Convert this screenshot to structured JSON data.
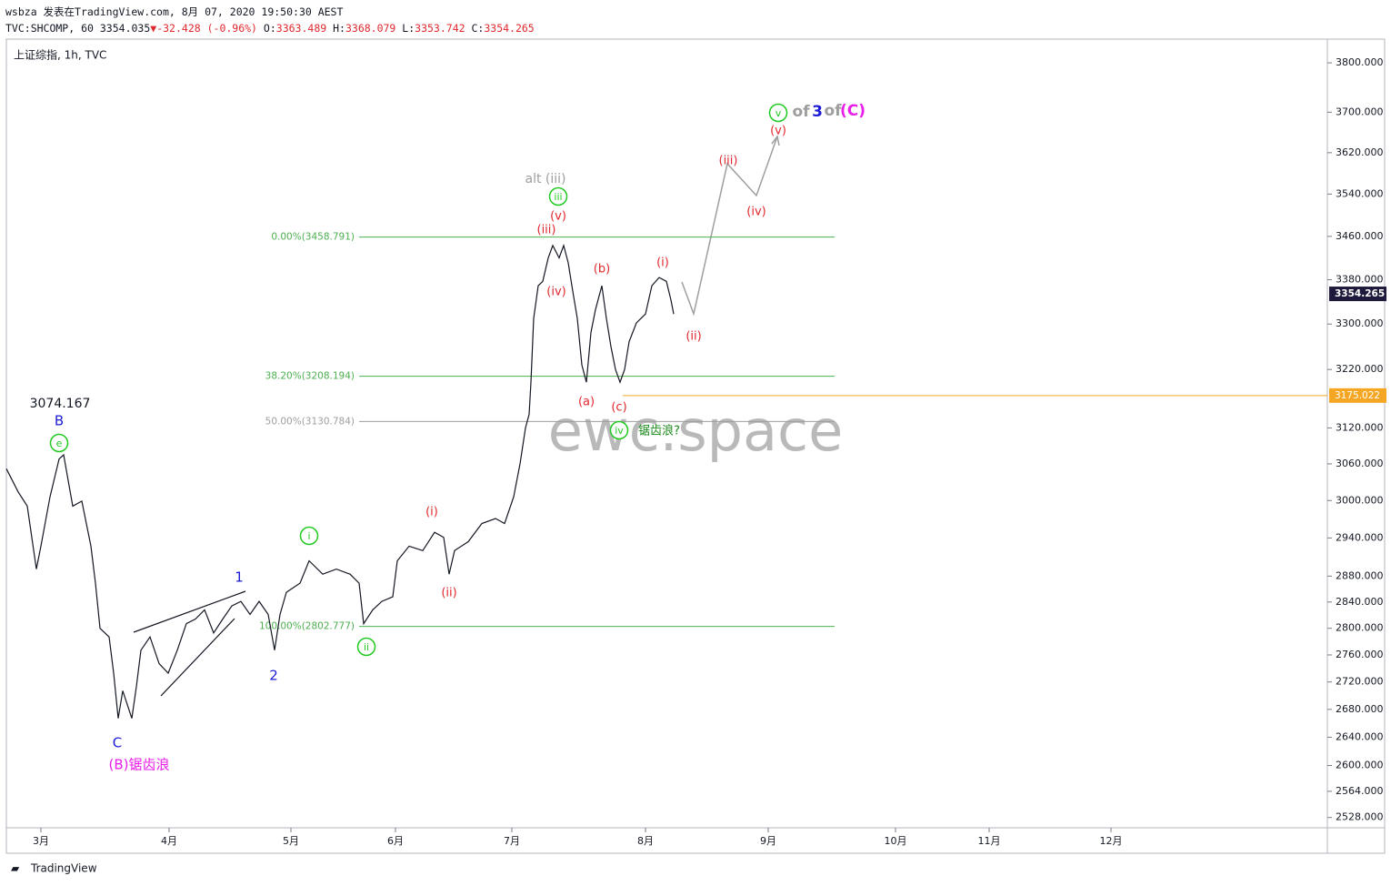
{
  "header": {
    "title": "wsbza 发表在TradingView.com, 8月 07, 2020 19:50:30 AEST",
    "symbol": "TVC:SHCOMP, 60",
    "last": "3354.035",
    "arrow": "▼",
    "change": "-32.428 (-0.96%)",
    "open_label": "O:",
    "open": "3363.489",
    "high_label": "H:",
    "high": "3368.079",
    "low_label": "L:",
    "low": "3353.742",
    "close_label": "C:",
    "close": "3354.265"
  },
  "chart_data": {
    "type": "line",
    "title": "上证综指, 1h, TVC",
    "watermark": "ewc.space",
    "yscale": "log",
    "color": "#131722",
    "x": [
      0,
      13,
      23,
      33,
      38,
      48,
      58,
      63,
      73,
      83,
      93,
      98,
      103,
      113,
      118,
      123,
      128,
      138,
      143,
      148,
      158,
      168,
      178,
      188,
      198,
      208,
      218,
      228,
      238,
      248,
      258,
      268,
      278,
      288,
      295,
      301,
      308,
      323,
      333,
      348,
      363,
      378,
      388,
      393,
      403,
      413,
      425,
      430,
      443,
      458,
      471,
      481,
      487,
      493,
      508,
      523,
      538,
      548,
      558,
      565,
      571,
      575,
      577,
      580,
      585,
      590,
      596,
      601,
      608,
      613,
      618,
      623,
      628,
      633,
      638,
      643,
      648,
      655,
      660,
      665,
      670,
      675,
      680,
      685,
      693,
      703,
      710,
      718,
      726,
      731,
      734
    ],
    "values": [
      3052,
      3014,
      2991,
      2891,
      2927,
      3006,
      3068,
      3075,
      2991,
      2999,
      2927,
      2869,
      2800,
      2787,
      2733,
      2667,
      2707,
      2667,
      2713,
      2767,
      2787,
      2747,
      2733,
      2767,
      2807,
      2814,
      2828,
      2793,
      2814,
      2834,
      2841,
      2821,
      2841,
      2821,
      2767,
      2821,
      2855,
      2869,
      2904,
      2883,
      2891,
      2883,
      2869,
      2807,
      2828,
      2841,
      2848,
      2904,
      2927,
      2920,
      2949,
      2941,
      2883,
      2920,
      2934,
      2963,
      2971,
      2963,
      3006,
      3060,
      3120,
      3143,
      3198,
      3310,
      3369,
      3377,
      3420,
      3443,
      3420,
      3443,
      3411,
      3359,
      3310,
      3228,
      3198,
      3285,
      3326,
      3369,
      3310,
      3260,
      3220,
      3198,
      3220,
      3269,
      3302,
      3318,
      3369,
      3384,
      3377,
      3343,
      3318
    ],
    "xlim": [
      0,
      1453
    ],
    "xticks": [
      {
        "value": 38,
        "label": "3月"
      },
      {
        "value": 179,
        "label": "4月"
      },
      {
        "value": 313,
        "label": "5月"
      },
      {
        "value": 428,
        "label": "6月"
      },
      {
        "value": 556,
        "label": "7月"
      },
      {
        "value": 703,
        "label": "8月"
      },
      {
        "value": 838,
        "label": "9月"
      },
      {
        "value": 978,
        "label": "10月"
      },
      {
        "value": 1081,
        "label": "11月"
      },
      {
        "value": 1215,
        "label": "12月"
      }
    ],
    "ylim": [
      2514,
      3849
    ],
    "yticks": [
      {
        "value": 3800,
        "label": "3800.000"
      },
      {
        "value": 3700,
        "label": "3700.000"
      },
      {
        "value": 3620,
        "label": "3620.000"
      },
      {
        "value": 3540,
        "label": "3540.000"
      },
      {
        "value": 3460,
        "label": "3460.000"
      },
      {
        "value": 3380,
        "label": "3380.000"
      },
      {
        "value": 3300,
        "label": "3300.000"
      },
      {
        "value": 3220,
        "label": "3220.000"
      },
      {
        "value": 3120,
        "label": "3120.000"
      },
      {
        "value": 3060,
        "label": "3060.000"
      },
      {
        "value": 3000,
        "label": "3000.000"
      },
      {
        "value": 2940,
        "label": "2940.000"
      },
      {
        "value": 2880,
        "label": "2880.000"
      },
      {
        "value": 2840,
        "label": "2840.000"
      },
      {
        "value": 2800,
        "label": "2800.000"
      },
      {
        "value": 2760,
        "label": "2760.000"
      },
      {
        "value": 2720,
        "label": "2720.000"
      },
      {
        "value": 2680,
        "label": "2680.000"
      },
      {
        "value": 2640,
        "label": "2640.000"
      },
      {
        "value": 2600,
        "label": "2600.000"
      },
      {
        "value": 2564,
        "label": "2564.000"
      },
      {
        "value": 2528,
        "label": "2528.000"
      }
    ],
    "fib_levels": [
      {
        "label": "0.00%(3458.791)",
        "value": 3458.791,
        "color": "#4caf50"
      },
      {
        "label": "38.20%(3208.194)",
        "value": 3208.194,
        "color": "#4caf50"
      },
      {
        "label": "50.00%(3130.784)",
        "value": 3130.784,
        "color": "#9e9e9e"
      },
      {
        "label": "100.00%(2802.777)",
        "value": 2802.777,
        "color": "#4caf50"
      }
    ],
    "hline": {
      "value": 3175.022,
      "label": "3175.022",
      "color": "#f5a623"
    },
    "last_price": {
      "value": 3354.265,
      "label": "3354.265",
      "color": "#1e1a3c"
    },
    "annotations": [
      {
        "text": "3074.167",
        "color": "#131722"
      },
      {
        "text": "B",
        "color": "#1c1cd6"
      },
      {
        "text": "e",
        "color": "#22c922",
        "circled": true
      },
      {
        "text": "C",
        "color": "#1c1cd6"
      },
      {
        "text": "(B)锯齿浪",
        "color": "#e91ee9"
      },
      {
        "text": "1",
        "color": "#1c1cd6"
      },
      {
        "text": "2",
        "color": "#1c1cd6"
      },
      {
        "text": "i",
        "color": "#22c922",
        "circled": true
      },
      {
        "text": "ii",
        "color": "#22c922",
        "circled": true
      },
      {
        "text": "(i)",
        "color": "#e0282e"
      },
      {
        "text": "(ii)",
        "color": "#e0282e"
      },
      {
        "text": "alt (iii)",
        "color": "#9e9e9e"
      },
      {
        "text": "iii",
        "color": "#22c922",
        "circled": true
      },
      {
        "text": "(v)",
        "color": "#e0282e"
      },
      {
        "text": "(iii)",
        "color": "#e0282e"
      },
      {
        "text": "(iv)",
        "color": "#e0282e"
      },
      {
        "text": "(a)",
        "color": "#e0282e"
      },
      {
        "text": "(b)",
        "color": "#e0282e"
      },
      {
        "text": "(c)",
        "color": "#e0282e"
      },
      {
        "text": "iv",
        "color": "#22c922",
        "circled": true
      },
      {
        "text": "锯齿浪?",
        "color": "#1b8a1b"
      },
      {
        "text": "(i)",
        "color": "#e0282e"
      },
      {
        "text": "(ii)",
        "color": "#e0282e"
      },
      {
        "text": "(iii)",
        "color": "#e0282e"
      },
      {
        "text": "(iv)",
        "color": "#e0282e"
      },
      {
        "text": "(v)",
        "color": "#e0282e"
      },
      {
        "text": "v",
        "color": "#22c922",
        "circled": true
      },
      {
        "text": "of",
        "color": "#9e9e9e"
      },
      {
        "text": "3",
        "color": "#1c1cd6"
      },
      {
        "text": "of",
        "color": "#9e9e9e"
      },
      {
        "text": "(C)",
        "color": "#e91ee9"
      }
    ]
  },
  "footer": "TradingView"
}
